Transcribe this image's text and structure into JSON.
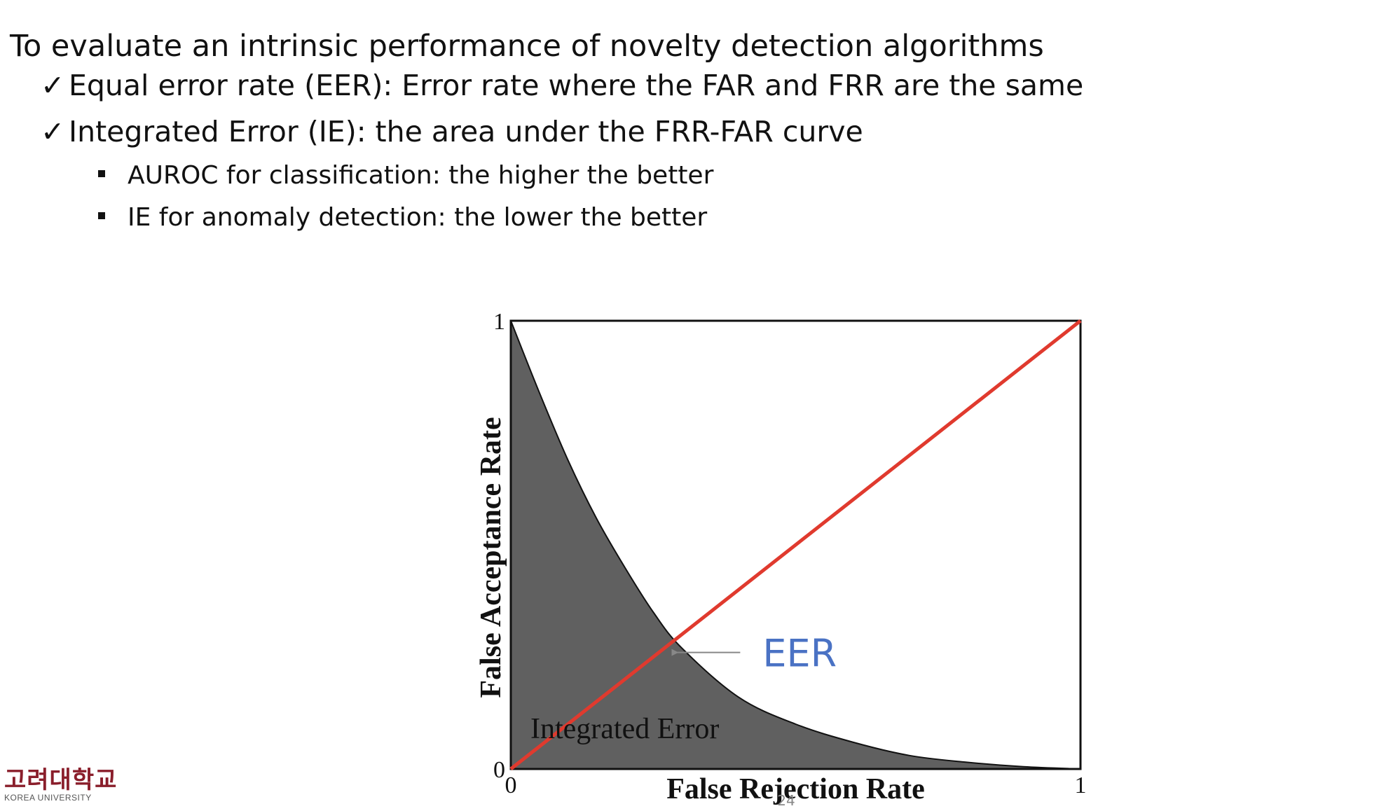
{
  "slide": {
    "title": "To evaluate an intrinsic performance of novelty detection algorithms",
    "bullets": [
      {
        "mark": "✓",
        "text": "Equal error rate (EER): Error rate where the FAR and FRR are the same"
      },
      {
        "mark": "✓",
        "text": "Integrated Error (IE): the area under the FRR-FAR curve"
      }
    ],
    "sub_bullets": [
      "AUROC for classification: the higher the better",
      "IE for anomaly detection: the lower the better"
    ],
    "page_number": "24"
  },
  "logo": {
    "korean": "고려대학교",
    "english": "KOREA UNIVERSITY"
  },
  "chart_data": {
    "type": "area",
    "xlabel": "False Rejection Rate",
    "ylabel": "False Acceptance Rate",
    "xlim": [
      0,
      1
    ],
    "ylim": [
      0,
      1
    ],
    "x_ticks": [
      "0",
      "1"
    ],
    "y_ticks": [
      "0",
      "1"
    ],
    "grid": false,
    "series": [
      {
        "kind": "filled-curve",
        "color": "#606060",
        "x": [
          0,
          0.05,
          0.1,
          0.15,
          0.2,
          0.25,
          0.3,
          0.4,
          0.5,
          0.6,
          0.7,
          0.8,
          0.9,
          1.0
        ],
        "y": [
          1.0,
          0.84,
          0.69,
          0.56,
          0.45,
          0.35,
          0.27,
          0.16,
          0.1,
          0.06,
          0.03,
          0.015,
          0.005,
          0.0
        ]
      },
      {
        "kind": "line",
        "color": "#e03a2e",
        "x": [
          0,
          1
        ],
        "y": [
          0,
          1
        ]
      }
    ],
    "eer_point": {
      "x": 0.26,
      "y": 0.26
    },
    "annotations": [
      {
        "text": "EER",
        "color": "#4a72c4"
      },
      {
        "text": "Integrated Error",
        "color": "#111111"
      }
    ]
  }
}
